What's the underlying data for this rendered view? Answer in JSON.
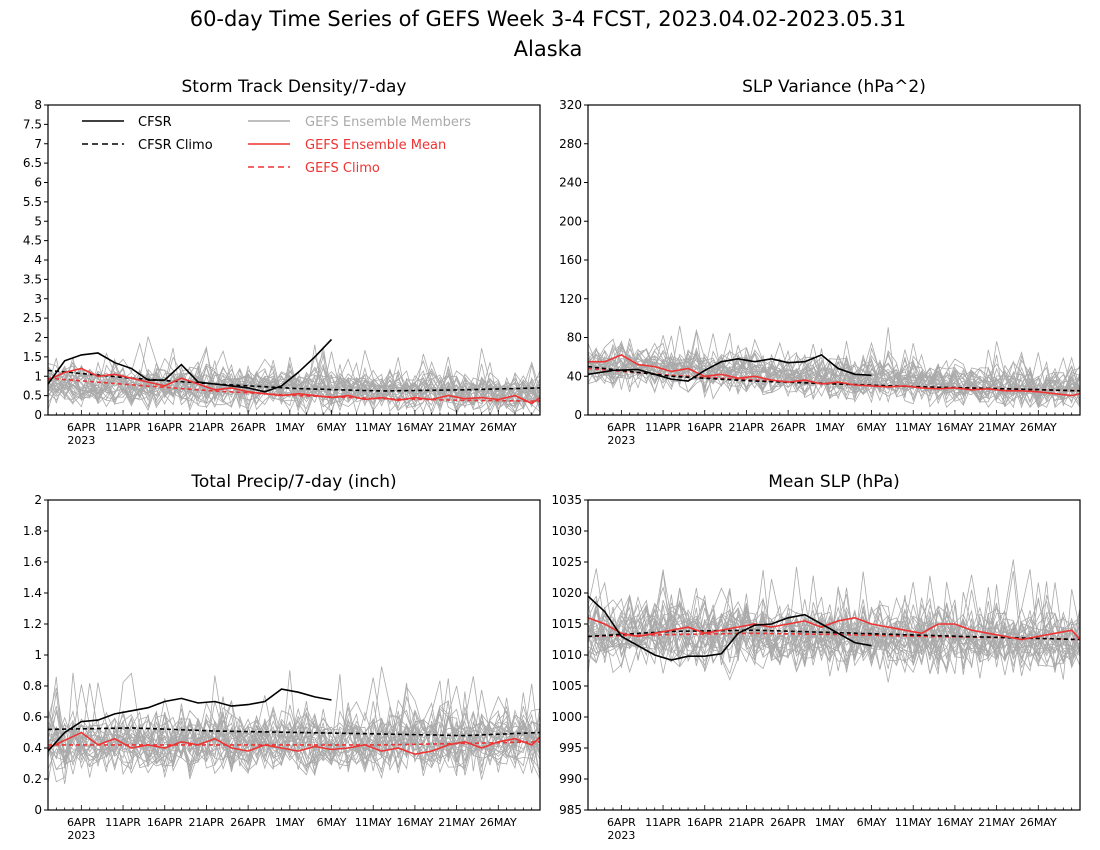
{
  "figure": {
    "title": "60-day Time Series of GEFS Week 3-4 FCST, 2023.04.02-2023.05.31",
    "subtitle": "Alaska"
  },
  "legend": {
    "cfsr": "CFSR",
    "cfsr_climo": "CFSR Climo",
    "ens_members": "GEFS Ensemble Members",
    "ens_mean": "GEFS Ensemble Mean",
    "gefs_climo": "GEFS Climo"
  },
  "colors": {
    "cfsr": "#000000",
    "ens_members": "#aaaaaa",
    "ens_mean": "#ee3333",
    "gefs_climo": "#ee3333"
  },
  "x_axis": {
    "tick_labels": [
      "6APR",
      "11APR",
      "16APR",
      "21APR",
      "26APR",
      "1MAY",
      "6MAY",
      "11MAY",
      "16MAY",
      "21MAY",
      "26MAY"
    ],
    "tick_days": [
      4,
      9,
      14,
      19,
      24,
      29,
      34,
      39,
      44,
      49,
      54
    ],
    "year_label": "2023"
  },
  "chart_data": [
    {
      "type": "line",
      "title": "Storm Track Density/7-day",
      "ylim": [
        0,
        8
      ],
      "yticks": [
        "0",
        "0.5",
        "1",
        "1.5",
        "2",
        "2.5",
        "3",
        "3.5",
        "4",
        "4.5",
        "5",
        "5.5",
        "6",
        "6.5",
        "7",
        "7.5",
        "8"
      ],
      "members": {
        "count": 30,
        "base": 0.8,
        "end": 0.55,
        "spread": 0.45,
        "min": 0
      },
      "series": [
        {
          "name": "CFSR",
          "role": "cfsr",
          "days": [
            0,
            2,
            4,
            6,
            8,
            10,
            12,
            14,
            16,
            18,
            20,
            22,
            24,
            26,
            28,
            30,
            32,
            34
          ],
          "values": [
            0.8,
            1.4,
            1.55,
            1.6,
            1.35,
            1.2,
            0.9,
            0.9,
            1.3,
            0.85,
            0.8,
            0.75,
            0.7,
            0.6,
            0.75,
            1.1,
            1.5,
            1.95
          ]
        },
        {
          "name": "CFSR Climo",
          "role": "cfsr_climo",
          "days": [
            0,
            10,
            20,
            30,
            40,
            50,
            59
          ],
          "values": [
            1.15,
            0.95,
            0.8,
            0.68,
            0.62,
            0.65,
            0.7
          ]
        },
        {
          "name": "GEFS Ensemble Mean",
          "role": "ens_mean",
          "days": [
            0,
            2,
            4,
            6,
            8,
            10,
            12,
            14,
            16,
            18,
            20,
            22,
            24,
            26,
            28,
            30,
            32,
            34,
            36,
            38,
            40,
            42,
            44,
            46,
            48,
            50,
            52,
            54,
            56,
            58,
            59
          ],
          "values": [
            0.9,
            1.1,
            1.2,
            1.0,
            1.05,
            0.95,
            0.85,
            0.75,
            0.95,
            0.8,
            0.65,
            0.7,
            0.6,
            0.55,
            0.5,
            0.55,
            0.5,
            0.45,
            0.5,
            0.4,
            0.45,
            0.38,
            0.45,
            0.4,
            0.5,
            0.42,
            0.45,
            0.4,
            0.5,
            0.3,
            0.45
          ]
        },
        {
          "name": "GEFS Climo",
          "role": "gefs_climo",
          "days": [
            0,
            10,
            20,
            30,
            40,
            50,
            59
          ],
          "values": [
            0.95,
            0.78,
            0.62,
            0.5,
            0.42,
            0.38,
            0.36
          ]
        }
      ]
    },
    {
      "type": "line",
      "title": "SLP Variance (hPa^2)",
      "ylim": [
        0,
        320
      ],
      "yticks": [
        "0",
        "40",
        "80",
        "120",
        "160",
        "200",
        "240",
        "280",
        "320"
      ],
      "members": {
        "count": 30,
        "base": 52,
        "end": 25,
        "spread": 18,
        "min": 8
      },
      "series": [
        {
          "name": "CFSR",
          "role": "cfsr",
          "days": [
            0,
            3,
            6,
            8,
            10,
            12,
            14,
            16,
            18,
            20,
            22,
            24,
            26,
            28,
            29,
            30,
            32,
            34
          ],
          "values": [
            42,
            46,
            47,
            42,
            37,
            35,
            46,
            55,
            58,
            55,
            58,
            54,
            55,
            62,
            55,
            48,
            42,
            41
          ]
        },
        {
          "name": "CFSR Climo",
          "role": "cfsr_climo",
          "days": [
            0,
            10,
            20,
            30,
            40,
            50,
            59
          ],
          "values": [
            50,
            40,
            35,
            32,
            29,
            27,
            25
          ]
        },
        {
          "name": "GEFS Ensemble Mean",
          "role": "ens_mean",
          "days": [
            0,
            2,
            4,
            6,
            8,
            10,
            12,
            14,
            16,
            18,
            20,
            22,
            24,
            26,
            28,
            30,
            32,
            34,
            36,
            38,
            40,
            42,
            44,
            46,
            48,
            50,
            52,
            54,
            56,
            58,
            59
          ],
          "values": [
            55,
            55,
            62,
            52,
            50,
            45,
            48,
            40,
            42,
            38,
            40,
            36,
            34,
            36,
            32,
            34,
            31,
            30,
            29,
            30,
            28,
            27,
            28,
            26,
            27,
            25,
            25,
            24,
            22,
            20,
            22
          ]
        },
        {
          "name": "GEFS Climo",
          "role": "gefs_climo",
          "days": [
            0,
            10,
            20,
            30,
            40,
            50,
            59
          ],
          "values": [
            48,
            41,
            36,
            32,
            29,
            27,
            25
          ]
        }
      ]
    },
    {
      "type": "line",
      "title": "Total Precip/7-day (inch)",
      "ylim": [
        0,
        2
      ],
      "yticks": [
        "0",
        "0.2",
        "0.4",
        "0.6",
        "0.8",
        "1",
        "1.2",
        "1.4",
        "1.6",
        "1.8",
        "2"
      ],
      "members": {
        "count": 30,
        "base": 0.43,
        "end": 0.45,
        "spread": 0.17,
        "min": 0.05
      },
      "series": [
        {
          "name": "CFSR",
          "role": "cfsr",
          "days": [
            0,
            2,
            4,
            6,
            8,
            10,
            12,
            14,
            16,
            18,
            20,
            22,
            24,
            26,
            28,
            30,
            32,
            34
          ],
          "values": [
            0.38,
            0.5,
            0.57,
            0.58,
            0.62,
            0.64,
            0.66,
            0.7,
            0.72,
            0.69,
            0.7,
            0.67,
            0.68,
            0.7,
            0.78,
            0.76,
            0.73,
            0.71
          ]
        },
        {
          "name": "CFSR Climo",
          "role": "cfsr_climo",
          "days": [
            0,
            10,
            20,
            30,
            40,
            50,
            59
          ],
          "values": [
            0.52,
            0.53,
            0.51,
            0.5,
            0.49,
            0.48,
            0.5
          ]
        },
        {
          "name": "GEFS Ensemble Mean",
          "role": "ens_mean",
          "days": [
            0,
            2,
            4,
            6,
            8,
            10,
            12,
            14,
            16,
            18,
            20,
            22,
            24,
            26,
            28,
            30,
            32,
            34,
            36,
            38,
            40,
            42,
            44,
            46,
            48,
            50,
            52,
            54,
            56,
            58,
            59
          ],
          "values": [
            0.4,
            0.45,
            0.5,
            0.42,
            0.46,
            0.4,
            0.42,
            0.4,
            0.44,
            0.42,
            0.46,
            0.4,
            0.38,
            0.42,
            0.4,
            0.38,
            0.41,
            0.39,
            0.4,
            0.42,
            0.38,
            0.4,
            0.36,
            0.38,
            0.42,
            0.44,
            0.4,
            0.44,
            0.46,
            0.42,
            0.47
          ]
        },
        {
          "name": "GEFS Climo",
          "role": "gefs_climo",
          "days": [
            0,
            10,
            20,
            30,
            40,
            50,
            59
          ],
          "values": [
            0.42,
            0.42,
            0.42,
            0.42,
            0.42,
            0.43,
            0.44
          ]
        }
      ]
    },
    {
      "type": "line",
      "title": "Mean SLP (hPa)",
      "ylim": [
        985,
        1035
      ],
      "yticks": [
        "985",
        "990",
        "995",
        "1000",
        "1005",
        "1010",
        "1015",
        "1020",
        "1025",
        "1030",
        "1035"
      ],
      "members": {
        "count": 30,
        "base": 1013.5,
        "end": 1012.5,
        "spread": 4.5,
        "min": 985
      },
      "series": [
        {
          "name": "CFSR",
          "role": "cfsr",
          "days": [
            0,
            2,
            4,
            6,
            8,
            10,
            12,
            14,
            16,
            18,
            20,
            22,
            24,
            26,
            28,
            30,
            32,
            34
          ],
          "values": [
            1019.5,
            1017,
            1013,
            1011.5,
            1010,
            1009.2,
            1009.8,
            1009.8,
            1010.2,
            1013.5,
            1014.8,
            1015,
            1016,
            1016.5,
            1015,
            1013.5,
            1012,
            1011.5
          ]
        },
        {
          "name": "CFSR Climo",
          "role": "cfsr_climo",
          "days": [
            0,
            10,
            20,
            30,
            40,
            50,
            59
          ],
          "values": [
            1013,
            1013.8,
            1014,
            1013.6,
            1013.2,
            1012.8,
            1012.5
          ]
        },
        {
          "name": "GEFS Ensemble Mean",
          "role": "ens_mean",
          "days": [
            0,
            2,
            4,
            6,
            8,
            10,
            12,
            14,
            16,
            18,
            20,
            22,
            24,
            26,
            28,
            30,
            32,
            34,
            36,
            38,
            40,
            42,
            44,
            46,
            48,
            50,
            52,
            54,
            56,
            58,
            59
          ],
          "values": [
            1016,
            1015,
            1013.5,
            1013,
            1013.5,
            1014,
            1014.5,
            1013.5,
            1014,
            1014.5,
            1015,
            1014.5,
            1015,
            1015.5,
            1014.5,
            1015.5,
            1016,
            1015,
            1014.5,
            1014,
            1013.5,
            1015,
            1015,
            1014,
            1013.5,
            1013,
            1012.5,
            1013,
            1013.5,
            1014,
            1012.5
          ]
        },
        {
          "name": "GEFS Climo",
          "role": "gefs_climo",
          "days": [
            0,
            10,
            20,
            30,
            40,
            50,
            59
          ],
          "values": [
            1013,
            1013.3,
            1013.5,
            1013.3,
            1013,
            1012.8,
            1012.5
          ]
        }
      ]
    }
  ]
}
